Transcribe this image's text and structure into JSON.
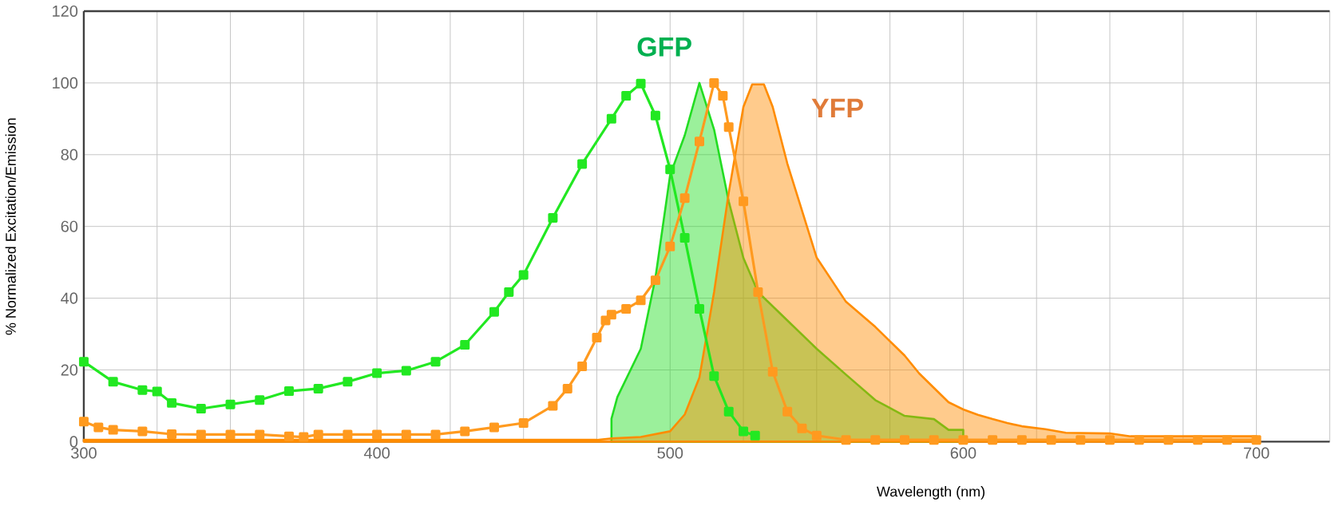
{
  "chart_data": {
    "type": "area",
    "xlabel": "Wavelength (nm)",
    "ylabel": "% Normalized Excitation/Emission",
    "xlim": [
      300,
      725
    ],
    "ylim": [
      0,
      120
    ],
    "xticks": [
      300,
      {
        "value": 325,
        "label": null
      },
      {
        "value": 350,
        "label": null
      },
      {
        "value": 375,
        "label": null
      },
      400,
      {
        "value": 425,
        "label": null
      },
      {
        "value": 450,
        "label": null
      },
      {
        "value": 475,
        "label": null
      },
      500,
      {
        "value": 525,
        "label": null
      },
      {
        "value": 550,
        "label": null
      },
      {
        "value": 575,
        "label": null
      },
      600,
      {
        "value": 625,
        "label": null
      },
      {
        "value": 650,
        "label": null
      },
      {
        "value": 675,
        "label": null
      },
      700,
      {
        "value": 725,
        "label": null
      }
    ],
    "yticks": [
      0,
      20,
      40,
      60,
      80,
      100,
      120
    ],
    "grid": true,
    "series": [
      {
        "color": "#22dd22",
        "x": [
          480,
          482,
          490,
          495,
          500,
          505,
          510,
          515,
          520,
          525,
          530,
          540,
          550,
          560,
          570,
          580,
          590,
          595,
          600
        ],
        "values": [
          6.4,
          12.4,
          25.9,
          45.7,
          74.3,
          85.4,
          100,
          87,
          67,
          51.2,
          41.7,
          33.8,
          25.9,
          18.7,
          11.6,
          7.2,
          6.3,
          3.3,
          3.3
        ]
      },
      {
        "color": "#ff8c00",
        "x": [
          300,
          400,
          475,
          480,
          490,
          500,
          505,
          510,
          515,
          520,
          525,
          528,
          532,
          535,
          540,
          550,
          560,
          570,
          580,
          585,
          590,
          595,
          600,
          605,
          610,
          615,
          620,
          628,
          635,
          650,
          657,
          700
        ],
        "values": [
          0.5,
          0.5,
          0.5,
          0.9,
          1.3,
          2.9,
          7.6,
          17.9,
          41.7,
          69.4,
          93.3,
          99.6,
          99.6,
          93.3,
          77.5,
          51.3,
          39,
          32,
          24,
          19,
          15,
          11,
          9,
          7.5,
          6.3,
          5.2,
          4.3,
          3.5,
          2.5,
          2.3,
          1.5,
          1.5
        ]
      },
      {
        "type": "line",
        "marker": "square",
        "color": "#22e822",
        "x": [
          300,
          310,
          320,
          325,
          330,
          340,
          350,
          360,
          370,
          380,
          390,
          400,
          410,
          420,
          430,
          440,
          445,
          450,
          460,
          470,
          480,
          485,
          490,
          495,
          500,
          505,
          510,
          515,
          520,
          525,
          529
        ],
        "values": [
          22.3,
          16.7,
          14.4,
          14,
          10.8,
          9.2,
          10.4,
          11.6,
          14.1,
          14.8,
          16.7,
          19.1,
          19.8,
          22.3,
          27,
          36.2,
          41.7,
          46.5,
          62.4,
          77.4,
          90,
          96.4,
          99.8,
          90.9,
          75.9,
          56.8,
          37,
          18.3,
          8.4,
          2.9,
          1.7
        ]
      },
      {
        "type": "line",
        "marker": "square",
        "color": "#ff9a1f",
        "x": [
          300,
          305,
          310,
          320,
          330,
          340,
          350,
          360,
          370,
          375,
          380,
          390,
          400,
          410,
          420,
          430,
          440,
          450,
          460,
          465,
          470,
          475,
          478,
          480,
          485,
          490,
          495,
          500,
          505,
          510,
          515,
          518,
          520,
          525,
          530,
          535,
          540,
          545,
          550,
          560,
          570,
          580,
          590,
          600,
          610,
          620,
          630,
          640,
          650,
          660,
          670,
          680,
          690,
          700
        ],
        "values": [
          5.6,
          4,
          3.3,
          2.9,
          2.1,
          2,
          2,
          2,
          1.5,
          1.3,
          2,
          2,
          2,
          2,
          2,
          2.9,
          4,
          5.2,
          10,
          14.8,
          21,
          29,
          33.8,
          35.4,
          37,
          39.4,
          45,
          54.4,
          67.9,
          83.7,
          100,
          96.4,
          87.7,
          67,
          41.7,
          19.5,
          8.4,
          3.7,
          1.7,
          0.5,
          0.5,
          0.5,
          0.5,
          0.5,
          0.5,
          0.5,
          0.5,
          0.5,
          0.5,
          0.5,
          0.5,
          0.5,
          0.5,
          0.5
        ]
      }
    ],
    "annotations": [
      "GFP",
      "YFP"
    ]
  }
}
